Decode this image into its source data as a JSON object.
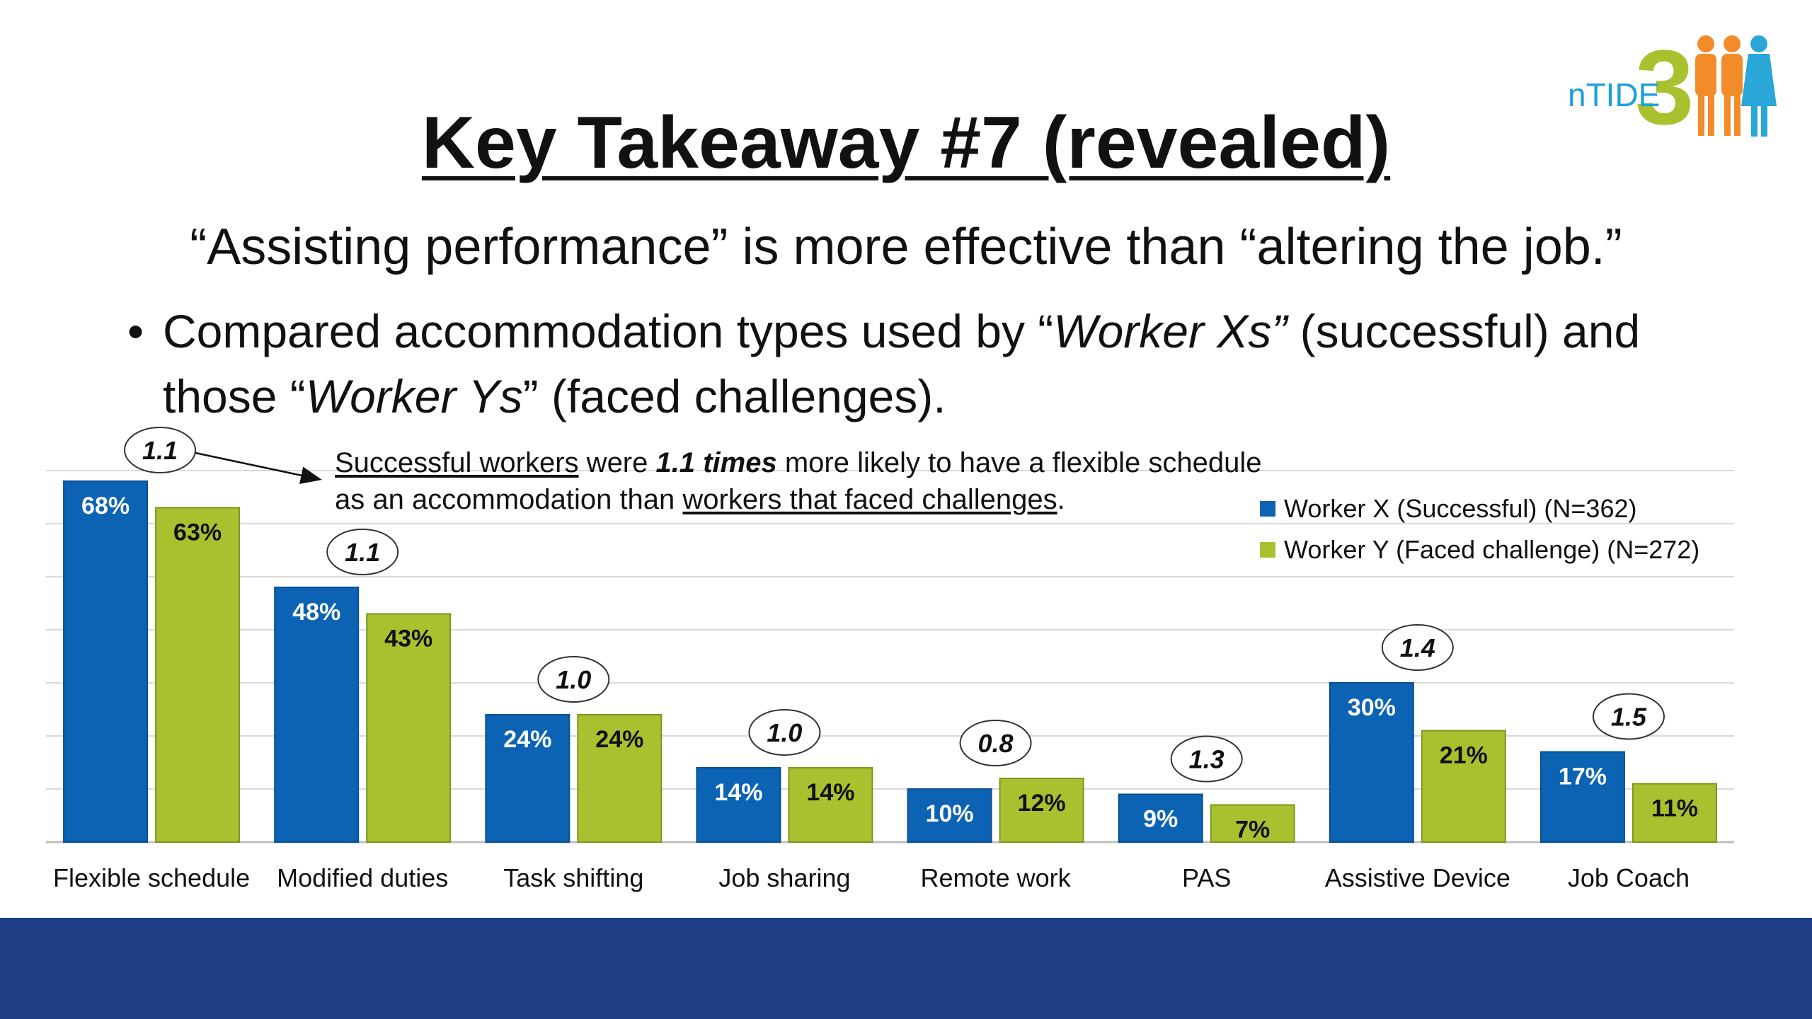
{
  "slide": {
    "title": "Key Takeaway #7 (revealed)",
    "subtitle": "“Assisting performance” is more effective than “altering the job.”",
    "bullet": {
      "t1": "Compared accommodation types used by “",
      "t2": "Worker Xs”",
      "t3": " (successful) and those “",
      "t4": "Worker Ys",
      "t5": "” (faced challenges)."
    },
    "note": {
      "p1": "Successful workers",
      "p2": " were ",
      "p3": "1.1 times",
      "p4": " more likely to have a flexible schedule",
      "p5": "as an accommodation than ",
      "p6": "workers that faced challenges",
      "p7": "."
    },
    "logo_text": "nTIDE",
    "logo_digit": "3"
  },
  "colors": {
    "worker_x": "#0c63b3",
    "worker_y": "#a9c12f",
    "footer": "#1d3d84",
    "grid": "#d9d9d9"
  },
  "chart_data": {
    "type": "bar",
    "categories": [
      "Flexible schedule",
      "Modified duties",
      "Task shifting",
      "Job sharing",
      "Remote work",
      "PAS",
      "Assistive Device",
      "Job Coach"
    ],
    "series": [
      {
        "name": "Worker X (Successful) (N=362)",
        "values": [
          68,
          48,
          24,
          14,
          10,
          9,
          30,
          17
        ],
        "labels": [
          "68%",
          "48%",
          "24%",
          "14%",
          "10%",
          "9%",
          "30%",
          "17%"
        ]
      },
      {
        "name": "Worker Y (Faced challenge) (N=272)",
        "values": [
          63,
          43,
          24,
          14,
          12,
          7,
          21,
          11
        ],
        "labels": [
          "63%",
          "43%",
          "24%",
          "14%",
          "12%",
          "7%",
          "21%",
          "11%"
        ]
      }
    ],
    "ratios": [
      "1.1",
      "1.1",
      "1.0",
      "1.0",
      "0.8",
      "1.3",
      "1.4",
      "1.5"
    ],
    "ylim": [
      0,
      70
    ],
    "grid": true,
    "legend_position": "top-right"
  }
}
